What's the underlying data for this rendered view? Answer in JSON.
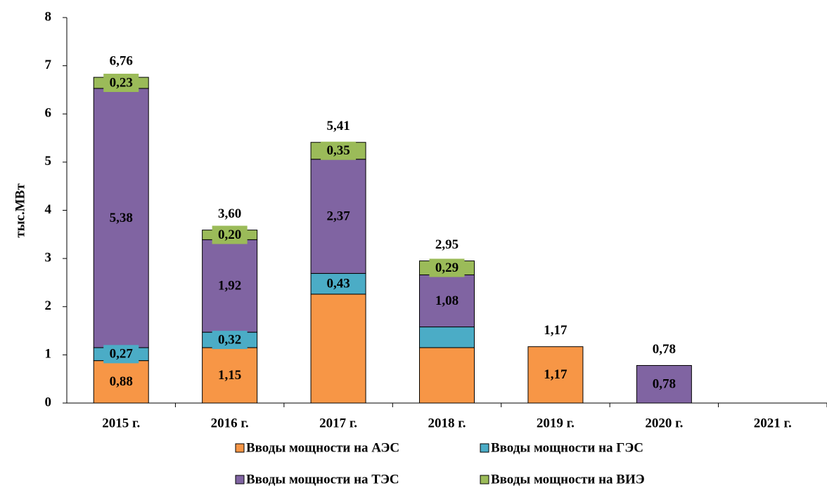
{
  "chart_data": {
    "type": "stacked_bar",
    "ylabel": "тыс.МВт",
    "categories": [
      "2015 г.",
      "2016 г.",
      "2017 г.",
      "2018 г.",
      "2019 г.",
      "2020 г.",
      "2021 г."
    ],
    "series": [
      {
        "name": "Вводы мощности на АЭС",
        "color": "#f79646",
        "values": [
          0.88,
          1.15,
          2.26,
          1.15,
          1.17,
          null,
          null
        ],
        "value_labels": [
          "0,88",
          "1,15",
          null,
          null,
          "1,17",
          null,
          null
        ]
      },
      {
        "name": "Вводы мощности на ГЭС",
        "color": "#4bacc6",
        "values": [
          0.27,
          0.32,
          0.43,
          0.43,
          null,
          null,
          null
        ],
        "value_labels": [
          "0,27",
          "0,32",
          "0,43",
          null,
          null,
          null,
          null
        ]
      },
      {
        "name": "Вводы мощности на ТЭС",
        "color": "#8064a2",
        "values": [
          5.38,
          1.92,
          2.37,
          1.08,
          null,
          0.78,
          null
        ],
        "value_labels": [
          "5,38",
          "1,92",
          "2,37",
          "1,08",
          null,
          "0,78",
          null
        ]
      },
      {
        "name": "Вводы мощности на ВИЭ",
        "color": "#9bbb59",
        "values": [
          0.23,
          0.2,
          0.35,
          0.29,
          null,
          null,
          null
        ],
        "value_labels": [
          "0,23",
          "0,20",
          "0,35",
          "0,29",
          null,
          null,
          null
        ]
      }
    ],
    "totals": [
      6.76,
      3.6,
      5.41,
      2.95,
      1.17,
      0.78,
      null
    ],
    "total_labels": [
      "6,76",
      "3,60",
      "5,41",
      "2,95",
      "1,17",
      "0,78",
      null
    ],
    "ylim": [
      0,
      8
    ],
    "yticks": [
      0,
      1,
      2,
      3,
      4,
      5,
      6,
      7,
      8
    ],
    "grid": false
  }
}
